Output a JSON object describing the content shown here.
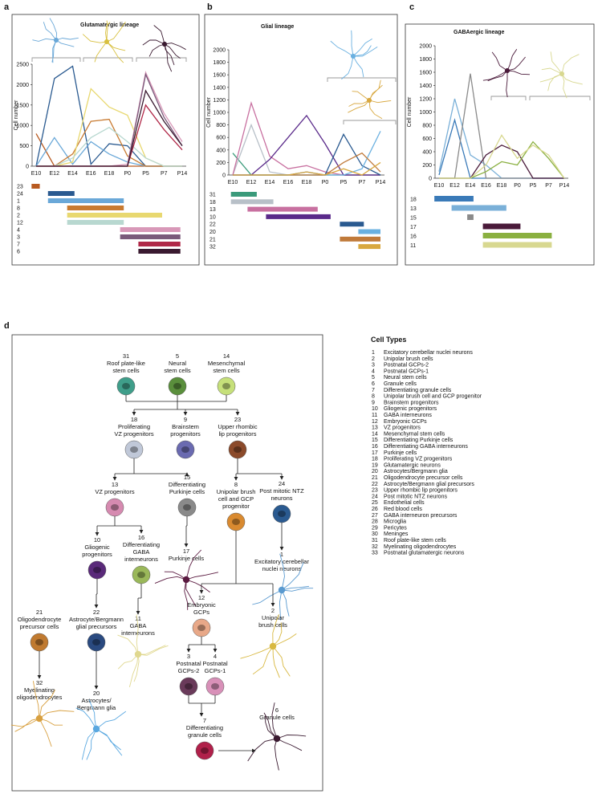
{
  "panels": [
    "a",
    "b",
    "c",
    "d"
  ],
  "chart_data": [
    {
      "type": "line",
      "title": "Glutamatergic lineage",
      "y_label": "Cell number",
      "categories": [
        "E10",
        "E12",
        "E14",
        "E16",
        "E18",
        "P0",
        "P5",
        "P7",
        "P14"
      ],
      "ylim": [
        0,
        2500
      ],
      "yticks": [
        0,
        500,
        1000,
        1500,
        2000,
        2500
      ],
      "series": [
        {
          "name": "23",
          "color": "#b85a20",
          "values": [
            800,
            0,
            0,
            0,
            0,
            0,
            0,
            0,
            0
          ],
          "span": [
            -0.25,
            0.2
          ]
        },
        {
          "name": "24",
          "color": "#2a5a90",
          "values": [
            0,
            2150,
            2450,
            50,
            550,
            500,
            0,
            0,
            0
          ],
          "span": [
            0.65,
            2.1
          ]
        },
        {
          "name": "1",
          "color": "#6aa8d8",
          "values": [
            0,
            700,
            50,
            600,
            300,
            100,
            0,
            0,
            0
          ],
          "span": [
            0.65,
            4.8
          ]
        },
        {
          "name": "8",
          "color": "#c87a30",
          "values": [
            0,
            0,
            300,
            1100,
            1150,
            250,
            0,
            0,
            0
          ],
          "span": [
            1.7,
            4.8
          ]
        },
        {
          "name": "2",
          "color": "#e8d870",
          "values": [
            0,
            0,
            100,
            1900,
            1450,
            1250,
            200,
            0,
            0
          ],
          "span": [
            1.7,
            6.9
          ]
        },
        {
          "name": "12",
          "color": "#b8d8d0",
          "values": [
            0,
            0,
            200,
            700,
            950,
            600,
            200,
            0,
            0
          ],
          "span": [
            1.7,
            4.8
          ]
        },
        {
          "name": "4",
          "color": "#d898b8",
          "values": [
            0,
            0,
            0,
            0,
            0,
            50,
            2300,
            1300,
            600
          ],
          "span": [
            4.6,
            7.9
          ]
        },
        {
          "name": "3",
          "color": "#7a5a7a",
          "values": [
            0,
            0,
            0,
            0,
            0,
            0,
            2250,
            1200,
            500
          ],
          "span": [
            4.6,
            7.9
          ]
        },
        {
          "name": "7",
          "color": "#b02848",
          "values": [
            0,
            0,
            0,
            0,
            0,
            0,
            1500,
            900,
            400
          ],
          "span": [
            5.6,
            7.9
          ]
        },
        {
          "name": "6",
          "color": "#3a1a30",
          "values": [
            0,
            0,
            0,
            0,
            0,
            0,
            1850,
            1100,
            500
          ],
          "span": [
            5.6,
            7.9
          ]
        }
      ]
    },
    {
      "type": "line",
      "title": "Glial lineage",
      "y_label": "Cell number",
      "categories": [
        "E10",
        "E12",
        "E14",
        "E16",
        "E18",
        "P0",
        "P5",
        "P7",
        "P14"
      ],
      "ylim": [
        0,
        2000
      ],
      "yticks": [
        0,
        200,
        400,
        600,
        800,
        1000,
        1200,
        1400,
        1600,
        1800,
        2000
      ],
      "series": [
        {
          "name": "31",
          "color": "#3a9a7a",
          "values": [
            350,
            0,
            0,
            0,
            0,
            0,
            0,
            0,
            0
          ],
          "span": [
            -0.1,
            1.3
          ]
        },
        {
          "name": "18",
          "color": "#b8c0c8",
          "values": [
            0,
            800,
            50,
            0,
            0,
            0,
            0,
            0,
            0
          ],
          "span": [
            -0.1,
            2.2
          ]
        },
        {
          "name": "13",
          "color": "#c870a0",
          "values": [
            0,
            1150,
            300,
            100,
            150,
            50,
            0,
            0,
            0
          ],
          "span": [
            0.8,
            4.6
          ]
        },
        {
          "name": "10",
          "color": "#5a2a8a",
          "values": [
            0,
            0,
            250,
            600,
            950,
            500,
            0,
            0,
            0
          ],
          "span": [
            1.8,
            5.3
          ]
        },
        {
          "name": "22",
          "color": "#2a5a90",
          "values": [
            0,
            0,
            0,
            0,
            50,
            0,
            650,
            150,
            0
          ],
          "span": [
            5.8,
            7.1
          ]
        },
        {
          "name": "20",
          "color": "#6ab0e0",
          "values": [
            0,
            0,
            0,
            0,
            0,
            0,
            0,
            100,
            700
          ],
          "span": [
            6.8,
            8
          ]
        },
        {
          "name": "21",
          "color": "#c07a3a",
          "values": [
            0,
            0,
            0,
            0,
            0,
            0,
            200,
            350,
            50
          ],
          "span": [
            5.8,
            8
          ]
        },
        {
          "name": "32",
          "color": "#d8a840",
          "values": [
            0,
            0,
            0,
            0,
            50,
            0,
            100,
            0,
            200
          ],
          "span": [
            6.8,
            8
          ]
        }
      ]
    },
    {
      "type": "line",
      "title": "GABAergic lineage",
      "y_label": "Cell number",
      "categories": [
        "E10",
        "E12",
        "E14",
        "E16",
        "E18",
        "P0",
        "P5",
        "P7",
        "P14"
      ],
      "ylim": [
        0,
        2000
      ],
      "yticks": [
        0,
        200,
        400,
        600,
        800,
        1000,
        1200,
        1400,
        1600,
        1800,
        2000
      ],
      "series": [
        {
          "name": "18",
          "color": "#3a7ab8",
          "values": [
            50,
            880,
            0,
            0,
            0,
            0,
            0,
            0,
            0
          ],
          "span": [
            -0.3,
            2.2
          ]
        },
        {
          "name": "13",
          "color": "#7ab0d8",
          "values": [
            100,
            1200,
            350,
            200,
            0,
            0,
            0,
            0,
            0
          ],
          "span": [
            0.8,
            4.3
          ]
        },
        {
          "name": "15",
          "color": "#8a8a8a",
          "values": [
            0,
            0,
            1580,
            0,
            0,
            0,
            0,
            0,
            0
          ],
          "span": [
            1.8,
            2.2
          ]
        },
        {
          "name": "17",
          "color": "#4a1a3a",
          "values": [
            0,
            0,
            0,
            350,
            500,
            400,
            0,
            0,
            0
          ],
          "span": [
            2.8,
            5.2
          ]
        },
        {
          "name": "16",
          "color": "#8ab040",
          "values": [
            0,
            0,
            0,
            100,
            250,
            200,
            550,
            300,
            0
          ],
          "span": [
            2.8,
            7.2
          ]
        },
        {
          "name": "11",
          "color": "#d8d890",
          "values": [
            0,
            0,
            0,
            200,
            650,
            300,
            500,
            350,
            0
          ],
          "span": [
            2.8,
            7.2
          ]
        }
      ]
    }
  ],
  "lineage": {
    "nodes": [
      {
        "number": "31",
        "lines": [
          "Roof plate-like",
          "stem cells"
        ],
        "color": "#3f9e8a"
      },
      {
        "number": "5",
        "lines": [
          "Neural",
          "stem cells"
        ],
        "color": "#5a8f3c"
      },
      {
        "number": "14",
        "lines": [
          "Mesenchymal",
          "stem cells"
        ],
        "color": "#c6e07a"
      },
      {
        "number": "18",
        "lines": [
          "Proliferating",
          "VZ progenitors"
        ],
        "color": "#c0c8d8"
      },
      {
        "number": "9",
        "lines": [
          "Brainstem",
          "progenitors"
        ],
        "color": "#6a6ab0"
      },
      {
        "number": "23",
        "lines": [
          "Upper rhombic",
          "lip progenitors"
        ],
        "color": "#8b4a2a"
      },
      {
        "number": "13",
        "lines": [
          "VZ progenitors"
        ],
        "color": "#d68ab0"
      },
      {
        "number": "15",
        "lines": [
          "Differentiating",
          "Purkinje cells"
        ],
        "color": "#8a8a8a"
      },
      {
        "number": "8",
        "lines": [
          "Unipolar brush",
          "cell and GCP",
          "progenitor"
        ],
        "color": "#d98a30"
      },
      {
        "number": "24",
        "lines": [
          "Post mitotic NTZ",
          "neurons"
        ],
        "color": "#2a5a90"
      },
      {
        "number": "10",
        "lines": [
          "Gliogenic",
          "progenitors"
        ],
        "color": "#5a2a7a"
      },
      {
        "number": "16",
        "lines": [
          "Differentiating",
          "GABA",
          "interneurons"
        ],
        "color": "#9ab85a"
      },
      {
        "number": "17",
        "lines": [
          "Purkinje cells"
        ]
      },
      {
        "number": "1",
        "lines": [
          "Excitatory cerebellar",
          "nuclei neurons"
        ]
      },
      {
        "number": "21",
        "lines": [
          "Oligodendrocyte",
          "precursor cells"
        ],
        "color": "#c07a30"
      },
      {
        "number": "22",
        "lines": [
          "Astrocyte/Bergmann",
          "glial precursors"
        ],
        "color": "#2a4a80"
      },
      {
        "number": "11",
        "lines": [
          "GABA",
          "interneurons"
        ]
      },
      {
        "number": "12",
        "lines": [
          "Embryonic",
          "GCPs"
        ],
        "color": "#e8a888"
      },
      {
        "number": "2",
        "lines": [
          "Unipolar",
          "brush cells"
        ]
      },
      {
        "number": "3",
        "lines": [
          "Postnatal",
          "GCPs-2"
        ],
        "color": "#6a3a5a"
      },
      {
        "number": "4",
        "lines": [
          "Postnatal",
          "GCPs-1"
        ],
        "color": "#d890b8"
      },
      {
        "number": "32",
        "lines": [
          "Myelinating",
          "oligodendrocytes"
        ]
      },
      {
        "number": "20",
        "lines": [
          "Astrocytes/",
          "Bergmann glia"
        ]
      },
      {
        "number": "7",
        "lines": [
          "Differentiating",
          "granule cells"
        ],
        "color": "#b0204a"
      },
      {
        "number": "6",
        "lines": [
          "Granule cells"
        ]
      }
    ]
  },
  "cell_types": {
    "title": "Cell Types",
    "items": [
      {
        "number": "1",
        "name": "Excitatory cerebellar nuclei neurons"
      },
      {
        "number": "2",
        "name": "Unipolar brush cells"
      },
      {
        "number": "3",
        "name": "Postnatal GCPs-2"
      },
      {
        "number": "4",
        "name": "Postnatal GCPs-1"
      },
      {
        "number": "5",
        "name": "Neural stem cells"
      },
      {
        "number": "6",
        "name": "Granule cells"
      },
      {
        "number": "7",
        "name": "Differentiating granule cells"
      },
      {
        "number": "8",
        "name": "Unipolar brush cell and GCP progenitor"
      },
      {
        "number": "9",
        "name": "Brainstem progenitors"
      },
      {
        "number": "10",
        "name": "Gliogenic progenitors"
      },
      {
        "number": "11",
        "name": "GABA interneurons"
      },
      {
        "number": "12",
        "name": "Embryonic GCPs"
      },
      {
        "number": "13",
        "name": "VZ progenitors"
      },
      {
        "number": "14",
        "name": "Mesenchymal stem cells"
      },
      {
        "number": "15",
        "name": "Differentiating Purkinje cells"
      },
      {
        "number": "16",
        "name": "Differentiating GABA interneurons"
      },
      {
        "number": "17",
        "name": "Purkinje cells"
      },
      {
        "number": "18",
        "name": "Proliferating VZ progenitors"
      },
      {
        "number": "19",
        "name": "Glutamatergic neurons"
      },
      {
        "number": "20",
        "name": "Astrocytes/Bergmann glia"
      },
      {
        "number": "21",
        "name": "Oligodendrocyte precursor cells"
      },
      {
        "number": "22",
        "name": "Astrocyte/Bergmann glial precursors"
      },
      {
        "number": "23",
        "name": "Upper rhombic lip progenitors"
      },
      {
        "number": "24",
        "name": "Post mitotic NTZ neurons"
      },
      {
        "number": "25",
        "name": "Endothelial cells"
      },
      {
        "number": "26",
        "name": "Red blood cells"
      },
      {
        "number": "27",
        "name": "GABA interneuron precursors"
      },
      {
        "number": "28",
        "name": "Microglia"
      },
      {
        "number": "29",
        "name": "Pericytes"
      },
      {
        "number": "30",
        "name": "Meninges"
      },
      {
        "number": "31",
        "name": "Roof plate-like stem cells"
      },
      {
        "number": "32",
        "name": "Myelinating oligodendrocytes"
      },
      {
        "number": "33",
        "name": "Postnatal glutamatergic neurons"
      }
    ]
  }
}
